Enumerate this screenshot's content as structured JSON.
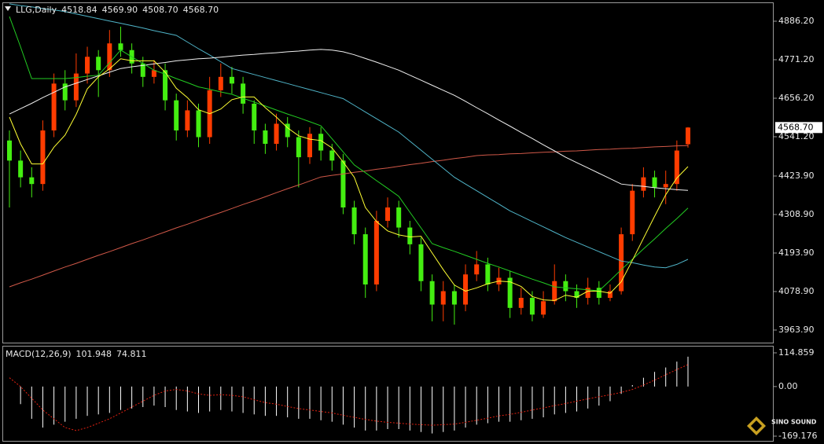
{
  "chart_data": [
    {
      "type": "candlestick",
      "title": "LLG,Daily",
      "last_bar_labels": [
        "4518.84",
        "4569.90",
        "4508.70",
        "4568.70"
      ],
      "up_color": "#ff3c00",
      "down_color": "#44ee11",
      "open": [
        4530,
        4470,
        4420,
        4400,
        4560,
        4700,
        4650,
        4730,
        4780,
        4740,
        4820,
        4800,
        4760,
        4720,
        4740,
        4650,
        4560,
        4620,
        4540,
        4680,
        4720,
        4700,
        4640,
        4560,
        4520,
        4580,
        4540,
        4480,
        4550,
        4500,
        4470,
        4330,
        4250,
        4100,
        4290,
        4330,
        4270,
        4220,
        4110,
        4040,
        4080,
        4040,
        4130,
        4160,
        4100,
        4120,
        4030,
        4060,
        4010,
        4050,
        4110,
        4080,
        4060,
        4090,
        4060,
        4080,
        4250,
        4380,
        4420,
        4390,
        4400,
        4518.84
      ],
      "high": [
        4560,
        4500,
        4450,
        4590,
        4730,
        4740,
        4790,
        4810,
        4800,
        4860,
        4870,
        4820,
        4780,
        4770,
        4760,
        4670,
        4650,
        4640,
        4720,
        4760,
        4750,
        4720,
        4650,
        4580,
        4610,
        4600,
        4560,
        4570,
        4570,
        4520,
        4490,
        4350,
        4270,
        4320,
        4360,
        4350,
        4290,
        4240,
        4130,
        4110,
        4100,
        4160,
        4200,
        4180,
        4150,
        4140,
        4090,
        4080,
        4080,
        4160,
        4130,
        4100,
        4120,
        4110,
        4100,
        4270,
        4400,
        4450,
        4440,
        4440,
        4530,
        4569.9
      ],
      "low": [
        4330,
        4390,
        4360,
        4380,
        4540,
        4620,
        4630,
        4700,
        4660,
        4720,
        4780,
        4730,
        4690,
        4700,
        4620,
        4530,
        4540,
        4510,
        4520,
        4660,
        4670,
        4610,
        4520,
        4490,
        4500,
        4510,
        4390,
        4460,
        4470,
        4440,
        4310,
        4220,
        4060,
        4080,
        4270,
        4240,
        4190,
        4080,
        3990,
        3990,
        3980,
        4020,
        4110,
        4080,
        4080,
        4000,
        4010,
        3990,
        4000,
        4040,
        4050,
        4030,
        4040,
        4040,
        4050,
        4070,
        4230,
        4360,
        4360,
        4340,
        4380,
        4508.7
      ],
      "close": [
        4470,
        4420,
        4400,
        4560,
        4700,
        4650,
        4730,
        4780,
        4740,
        4820,
        4800,
        4760,
        4720,
        4740,
        4650,
        4560,
        4620,
        4540,
        4680,
        4720,
        4700,
        4640,
        4560,
        4520,
        4580,
        4540,
        4480,
        4550,
        4500,
        4470,
        4330,
        4250,
        4100,
        4290,
        4330,
        4270,
        4220,
        4110,
        4040,
        4080,
        4040,
        4130,
        4160,
        4100,
        4120,
        4030,
        4060,
        4010,
        4050,
        4110,
        4080,
        4060,
        4090,
        4060,
        4080,
        4250,
        4380,
        4420,
        4390,
        4400,
        4500,
        4568.7
      ],
      "series": [
        {
          "color": "#d05848",
          "values": [
            4093,
            4105,
            4116,
            4128,
            4140,
            4152,
            4163,
            4175,
            4187,
            4198,
            4210,
            4222,
            4233,
            4245,
            4257,
            4269,
            4280,
            4292,
            4304,
            4315,
            4327,
            4339,
            4350,
            4362,
            4374,
            4386,
            4397,
            4409,
            4421,
            4426,
            4430,
            4435,
            4439,
            4444,
            4448,
            4453,
            4458,
            4462,
            4467,
            4471,
            4476,
            4480,
            4485,
            4487,
            4488,
            4490,
            4491,
            4493,
            4495,
            4496,
            4498,
            4499,
            4501,
            4503,
            4504,
            4506,
            4507,
            4509,
            4511,
            4512,
            4514,
            4515
          ]
        },
        {
          "color": "#4fb4c8",
          "values": [
            4938,
            4933,
            4929,
            4924,
            4920,
            4915,
            4908,
            4901,
            4894,
            4887,
            4880,
            4873,
            4866,
            4858,
            4851,
            4844,
            4824,
            4804,
            4785,
            4765,
            4745,
            4736,
            4727,
            4718,
            4709,
            4700,
            4691,
            4682,
            4673,
            4664,
            4655,
            4635,
            4615,
            4595,
            4575,
            4555,
            4528,
            4501,
            4474,
            4447,
            4420,
            4400,
            4380,
            4360,
            4340,
            4320,
            4304,
            4288,
            4272,
            4256,
            4240,
            4226,
            4212,
            4198,
            4184,
            4170,
            4165,
            4158,
            4152,
            4150,
            4160,
            4175
          ]
        },
        {
          "color": "#f0f0f0",
          "values": [
            4609,
            4625,
            4641,
            4658,
            4674,
            4690,
            4701,
            4712,
            4723,
            4734,
            4745,
            4750,
            4754,
            4759,
            4763,
            4768,
            4771,
            4774,
            4776,
            4779,
            4782,
            4785,
            4787,
            4790,
            4792,
            4795,
            4797,
            4800,
            4802,
            4800,
            4795,
            4786,
            4775,
            4764,
            4752,
            4740,
            4725,
            4710,
            4695,
            4680,
            4665,
            4647,
            4628,
            4610,
            4591,
            4573,
            4554,
            4536,
            4517,
            4499,
            4480,
            4464,
            4448,
            4432,
            4416,
            4400,
            4396,
            4393,
            4389,
            4386,
            4383,
            4381
          ]
        },
        {
          "color": "#22cc22",
          "values": [
            4900,
            4810,
            4715,
            4715,
            4715,
            4715,
            4718,
            4722,
            4725,
            4762,
            4800,
            4780,
            4760,
            4740,
            4728,
            4715,
            4703,
            4690,
            4683,
            4675,
            4668,
            4656,
            4645,
            4633,
            4621,
            4609,
            4598,
            4586,
            4574,
            4535,
            4496,
            4457,
            4434,
            4410,
            4387,
            4363,
            4316,
            4269,
            4222,
            4210,
            4199,
            4187,
            4175,
            4163,
            4152,
            4140,
            4128,
            4116,
            4105,
            4093,
            4090,
            4087,
            4084,
            4081,
            4112,
            4144,
            4175,
            4206,
            4236,
            4267,
            4297,
            4328
          ]
        },
        {
          "color": "#ffff33",
          "values": [
            4600,
            4520,
            4460,
            4460,
            4510,
            4546,
            4608,
            4684,
            4720,
            4744,
            4774,
            4768,
            4768,
            4768,
            4734,
            4686,
            4658,
            4622,
            4610,
            4624,
            4652,
            4660,
            4660,
            4628,
            4600,
            4568,
            4544,
            4534,
            4530,
            4508,
            4466,
            4420,
            4330,
            4288,
            4260,
            4248,
            4242,
            4244,
            4194,
            4144,
            4098,
            4080,
            4090,
            4102,
            4110,
            4108,
            4094,
            4064,
            4054,
            4052,
            4068,
            4062,
            4080,
            4080,
            4074,
            4108,
            4172,
            4238,
            4304,
            4368,
            4418,
            4452
          ]
        }
      ],
      "ylim": [
        3926.3,
        4940.2
      ],
      "yticks": [
        {
          "value": 4886.2,
          "label": "4886.20"
        },
        {
          "value": 4771.2,
          "label": "4771.20"
        },
        {
          "value": 4656.2,
          "label": "4656.20"
        },
        {
          "value": 4541.2,
          "label": "4541.20"
        },
        {
          "value": 4423.9,
          "label": "4423.90"
        },
        {
          "value": 4308.9,
          "label": "4308.90"
        },
        {
          "value": 4193.9,
          "label": "4193.90"
        },
        {
          "value": 4078.9,
          "label": "4078.90"
        },
        {
          "value": 3963.9,
          "label": "3963.90"
        }
      ]
    },
    {
      "type": "macd",
      "title": "MACD(12,26,9)",
      "histogram_color": "#ffffff",
      "signal_color": "#e02010",
      "histogram": [
        0,
        -60,
        -110,
        -140,
        -130,
        -120,
        -110,
        -100,
        -95,
        -90,
        -80,
        -75,
        -70,
        -65,
        -70,
        -80,
        -85,
        -90,
        -85,
        -80,
        -85,
        -90,
        -95,
        -100,
        -100,
        -105,
        -110,
        -110,
        -115,
        -120,
        -130,
        -140,
        -150,
        -150,
        -145,
        -145,
        -150,
        -155,
        -160,
        -155,
        -150,
        -140,
        -130,
        -125,
        -120,
        -120,
        -115,
        -110,
        -105,
        -95,
        -90,
        -85,
        -75,
        -65,
        -50,
        -25,
        5,
        30,
        50,
        65,
        85,
        101.948
      ],
      "signal": [
        30,
        0,
        -40,
        -80,
        -110,
        -140,
        -150,
        -140,
        -125,
        -110,
        -90,
        -70,
        -50,
        -30,
        -15,
        -10,
        -15,
        -25,
        -30,
        -28,
        -30,
        -35,
        -45,
        -55,
        -60,
        -68,
        -75,
        -80,
        -85,
        -90,
        -98,
        -105,
        -112,
        -118,
        -122,
        -125,
        -128,
        -130,
        -132,
        -130,
        -128,
        -122,
        -115,
        -108,
        -100,
        -95,
        -88,
        -80,
        -73,
        -65,
        -58,
        -50,
        -42,
        -35,
        -28,
        -20,
        -10,
        5,
        22,
        40,
        58,
        74.811
      ],
      "ylim": [
        -187.9,
        139
      ],
      "yticks": [
        114.859,
        {
          "value": 0,
          "label": "0.00"
        },
        -169.176
      ]
    }
  ],
  "watermark": "SINO SOUND"
}
